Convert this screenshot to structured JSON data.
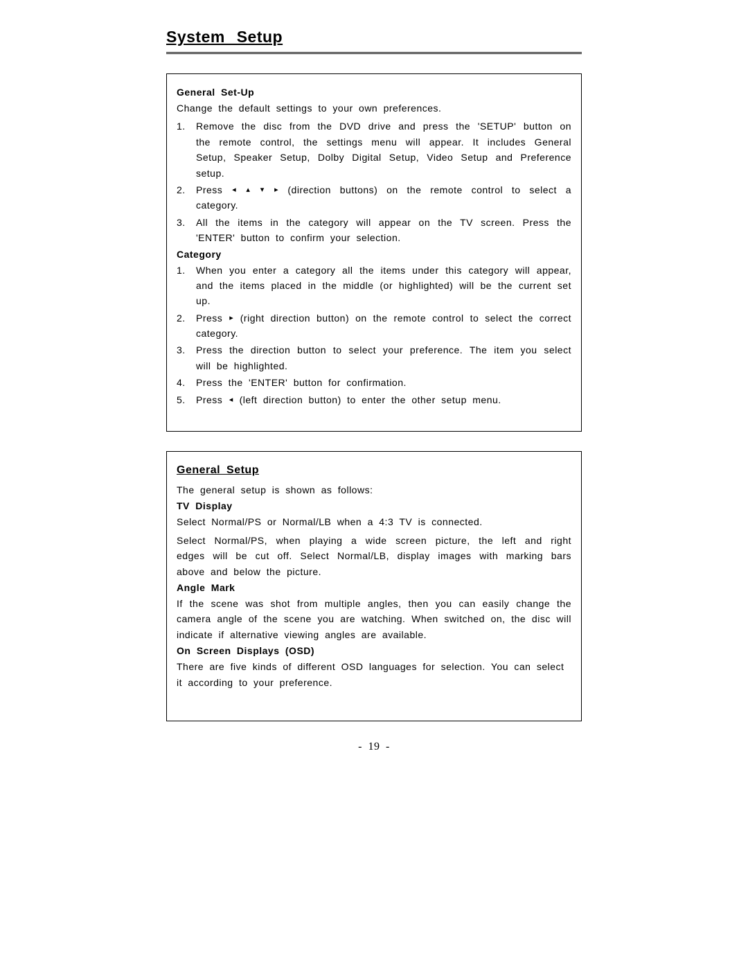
{
  "page_title": "System  Setup",
  "page_number": "- 19 -",
  "box1": {
    "heading1": "General  Set-Up",
    "intro1": "Change  the  default  settings  to  your  own  preferences.",
    "list1": [
      {
        "num": "1.",
        "text_a": "Remove  the  disc  from  the  DVD  drive  and  press  the  'SETUP'  button  on  the  remote control,  the  settings  menu  will  appear.  It  includes  General Setup,  Speaker Setup, Dolby  Digital  Setup,  Video  Setup  and  Preference  setup."
      },
      {
        "num": "2.",
        "arrows4": true,
        "text_a": "Press  ",
        "text_b": "  (direction  buttons)  on  the  remote  control  to  select  a  category."
      },
      {
        "num": "3.",
        "text_a": "All  the  items  in  the  category  will  appear  on  the  TV  screen.  Press  the  'ENTER' button  to  confirm  your  selection."
      }
    ],
    "heading2": "Category",
    "list2": [
      {
        "num": "1.",
        "text_a": "When  you  enter  a  category  all  the  items  under  this  category  will  appear,  and the  items  placed  in  the  middle  (or  highlighted)  will  be  the  current  set  up."
      },
      {
        "num": "2.",
        "arrow_right": true,
        "text_a": "Press  ",
        "text_b": "  (right direction button) on the remote control to select the correct category."
      },
      {
        "num": "3.",
        "text_a": "Press  the  direction  button  to  select  your  preference.  The  item  you  select  will be  highlighted."
      },
      {
        "num": "4.",
        "text_a": "Press  the  'ENTER'  button  for  confirmation."
      },
      {
        "num": "5.",
        "arrow_left": true,
        "text_a": "Press   ",
        "text_b": " (left  direction  button)  to  enter  the  other  setup  menu."
      }
    ]
  },
  "box2": {
    "heading": "General  Setup",
    "intro": "The  general  setup  is  shown  as  follows:",
    "sub1_heading": "TV  Display",
    "sub1_p1": "Select  Normal/PS  or  Normal/LB  when  a  4:3  TV  is  connected.",
    "sub1_p2": "Select  Normal/PS,  when  playing  a  wide  screen  picture,  the  left  and  right  edges will  be  cut  off.  Select Normal/LB,  display images with marking bars above and below the  picture.",
    "sub2_heading": "Angle  Mark",
    "sub2_p1": "If  the  scene  was  shot  from  multiple  angles,  then  you  can  easily  change  the  camera angle  of  the  scene  you  are  watching.  When  switched  on,  the  disc  will  indicate  if alternative  viewing  angles  are  available.",
    "sub3_heading": "On  Screen  Displays  (OSD)",
    "sub3_p1": "There are five kinds of different OSD languages for selection. You can select it according to  your  preference."
  },
  "arrows": {
    "left": "◂",
    "up": "▴",
    "down": "▾",
    "right": "▸"
  }
}
